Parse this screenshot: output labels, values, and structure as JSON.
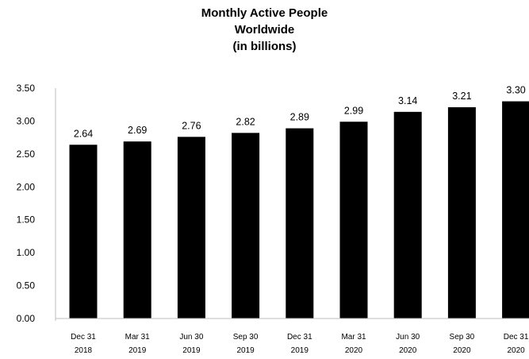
{
  "chart_data": {
    "type": "bar",
    "title_lines": [
      "Monthly Active People",
      "Worldwide",
      "(in billions)"
    ],
    "categories": [
      [
        "Dec 31",
        "2018"
      ],
      [
        "Mar 31",
        "2019"
      ],
      [
        "Jun 30",
        "2019"
      ],
      [
        "Sep 30",
        "2019"
      ],
      [
        "Dec 31",
        "2019"
      ],
      [
        "Mar 31",
        "2020"
      ],
      [
        "Jun 30",
        "2020"
      ],
      [
        "Sep 30",
        "2020"
      ],
      [
        "Dec 31",
        "2020"
      ]
    ],
    "values": [
      2.64,
      2.69,
      2.76,
      2.82,
      2.89,
      2.99,
      3.14,
      3.21,
      3.3
    ],
    "data_labels": [
      "2.64",
      "2.69",
      "2.76",
      "2.82",
      "2.89",
      "2.99",
      "3.14",
      "3.21",
      "3.30"
    ],
    "ylim": [
      0,
      3.5
    ],
    "yticks": [
      "0.00",
      "0.50",
      "1.00",
      "1.50",
      "2.00",
      "2.50",
      "3.00",
      "3.50"
    ],
    "bar_color": "#000000",
    "grid": false,
    "legend": "none"
  }
}
